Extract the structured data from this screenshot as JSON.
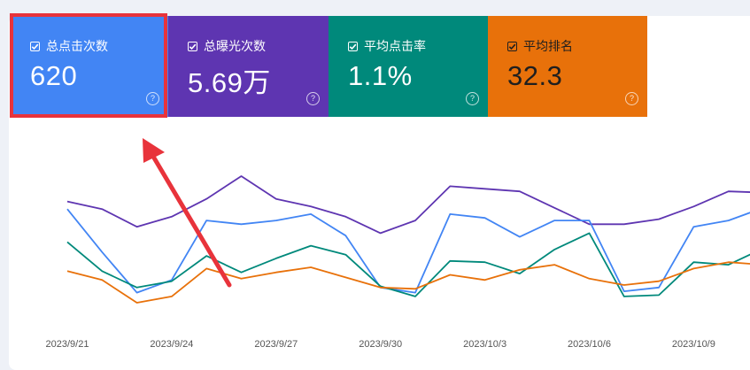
{
  "metrics": [
    {
      "id": "clicks",
      "label": "总点击次数",
      "value": "620",
      "color": "#4285f4",
      "text_color": "#ffffff"
    },
    {
      "id": "impressions",
      "label": "总曝光次数",
      "value": "5.69万",
      "color": "#5e35b1",
      "text_color": "#ffffff"
    },
    {
      "id": "ctr",
      "label": "平均点击率",
      "value": "1.1%",
      "color": "#00897b",
      "text_color": "#ffffff"
    },
    {
      "id": "position",
      "label": "平均排名",
      "value": "32.3",
      "color": "#e8710a",
      "text_color": "#1f1f1f"
    }
  ],
  "help_glyph": "?",
  "chart_data": {
    "type": "line",
    "x": [
      "2023/9/21",
      "2023/9/22",
      "2023/9/23",
      "2023/9/24",
      "2023/9/25",
      "2023/9/26",
      "2023/9/27",
      "2023/9/28",
      "2023/9/29",
      "2023/9/30",
      "2023/10/1",
      "2023/10/2",
      "2023/10/3",
      "2023/10/4",
      "2023/10/5",
      "2023/10/6",
      "2023/10/7",
      "2023/10/8",
      "2023/10/9",
      "2023/10/10",
      "2023/10/11"
    ],
    "tick_labels": [
      "2023/9/21",
      "2023/9/24",
      "2023/9/27",
      "2023/9/30",
      "2023/10/3",
      "2023/10/6",
      "2023/10/9"
    ],
    "series": [
      {
        "metric": "impressions",
        "color": "#5e35b1",
        "values": [
          0.8,
          0.74,
          0.6,
          0.68,
          0.82,
          1.0,
          0.82,
          0.76,
          0.68,
          0.55,
          0.65,
          0.92,
          0.9,
          0.88,
          0.75,
          0.62,
          0.62,
          0.66,
          0.76,
          0.88,
          0.87
        ]
      },
      {
        "metric": "clicks",
        "color": "#4285f4",
        "values": [
          0.74,
          0.4,
          0.08,
          0.18,
          0.65,
          0.62,
          0.65,
          0.7,
          0.53,
          0.12,
          0.08,
          0.7,
          0.67,
          0.52,
          0.65,
          0.65,
          0.09,
          0.12,
          0.6,
          0.65,
          0.75
        ]
      },
      {
        "metric": "ctr",
        "color": "#00897b",
        "values": [
          0.48,
          0.25,
          0.12,
          0.17,
          0.37,
          0.24,
          0.35,
          0.45,
          0.38,
          0.13,
          0.05,
          0.33,
          0.32,
          0.23,
          0.42,
          0.55,
          0.05,
          0.06,
          0.32,
          0.3,
          0.43
        ]
      },
      {
        "metric": "position",
        "color": "#e8710a",
        "values": [
          0.25,
          0.18,
          0.0,
          0.05,
          0.27,
          0.19,
          0.24,
          0.28,
          0.2,
          0.12,
          0.11,
          0.22,
          0.18,
          0.26,
          0.3,
          0.19,
          0.14,
          0.17,
          0.27,
          0.32,
          0.3
        ]
      }
    ],
    "grid": false,
    "legend": "none"
  }
}
